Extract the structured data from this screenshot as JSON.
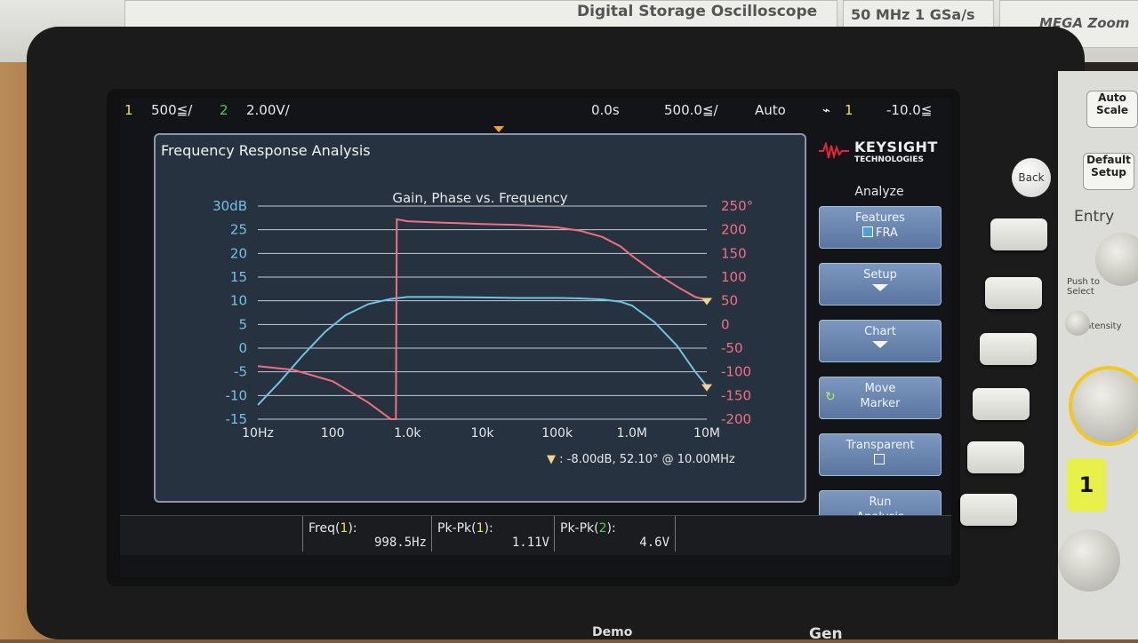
{
  "device": {
    "model_title": "Digital Storage Oscilloscope",
    "spec": "50 MHz  1 GSa/s",
    "brand_badge": "MEGA Zoom"
  },
  "status_bar": {
    "ch1_num": "1",
    "ch1_scale": "500≦/",
    "ch2_num": "2",
    "ch2_scale": "2.00V/",
    "time_offset": "0.0s",
    "time_scale": "500.0≦/",
    "trigger_mode": "Auto",
    "trigger_source": "1",
    "trigger_level": "-10.0≦"
  },
  "fra_window": {
    "title": "Frequency Response Analysis",
    "plot_title": "Gain, Phase vs. Frequency",
    "marker_readout": ": -8.00dB, 52.10° @ 10.00MHz"
  },
  "chart_data": {
    "type": "line",
    "title": "Gain, Phase vs. Frequency",
    "x_scale": "log",
    "x_unit": "Hz",
    "x_tick_labels": [
      "10Hz",
      "100",
      "1.0k",
      "10k",
      "100k",
      "1.0M",
      "10M"
    ],
    "x_ticks": [
      10,
      100,
      1000,
      10000,
      100000,
      1000000,
      10000000
    ],
    "xlim": [
      10,
      10000000
    ],
    "ylim_left": [
      -15,
      30
    ],
    "y_left_tick_labels": [
      "30dB",
      "25",
      "20",
      "15",
      "10",
      "5",
      "0",
      "-5",
      "-10",
      "-15"
    ],
    "ylim_right": [
      -200,
      250
    ],
    "y_right_tick_labels": [
      "250°",
      "200",
      "150",
      "100",
      "50",
      "0",
      "-50",
      "-100",
      "-150",
      "-200"
    ],
    "grid": true,
    "series": [
      {
        "axis": "left",
        "color": "#6fc3e3",
        "x": [
          10,
          20,
          40,
          80,
          150,
          300,
          600,
          1000,
          3000,
          10000,
          30000,
          100000,
          200000,
          400000,
          700000,
          1000000,
          2000000,
          4000000,
          7000000,
          10000000
        ],
        "y": [
          -12,
          -7,
          -1.5,
          3.5,
          7,
          9.3,
          10.4,
          10.8,
          10.8,
          10.7,
          10.6,
          10.6,
          10.5,
          10.3,
          9.8,
          9.0,
          5.5,
          0.5,
          -5,
          -8
        ]
      },
      {
        "axis": "right",
        "color": "#f07080",
        "x": [
          10,
          30,
          100,
          300,
          600,
          700,
          720,
          1000,
          3000,
          10000,
          30000,
          100000,
          200000,
          400000,
          700000,
          1000000,
          2000000,
          4000000,
          7000000,
          10000000
        ],
        "y": [
          -88,
          -96,
          -120,
          -165,
          -200,
          -200,
          222,
          218,
          215,
          212,
          210,
          205,
          198,
          185,
          165,
          145,
          110,
          80,
          58,
          52
        ]
      }
    ],
    "markers": [
      {
        "axis": "left",
        "x": 10000000,
        "y": -8
      },
      {
        "axis": "right",
        "x": 10000000,
        "y": 52.1
      }
    ]
  },
  "softkey_panel": {
    "brand_name": "KEYSIGHT",
    "brand_sub": "TECHNOLOGIES",
    "menu_title": "Analyze",
    "features_label": "Features",
    "features_value": "FRA",
    "setup_label": "Setup",
    "chart_label": "Chart",
    "move_marker_l1": "Move",
    "move_marker_l2": "Marker",
    "transparent_label": "Transparent",
    "run_l1": "Run",
    "run_l2": "Analysis"
  },
  "measurements": {
    "freq_label": "Freq(",
    "freq_ch": "1",
    "freq_label_end": "):",
    "freq_value": "998.5Hz",
    "pk1_label": "Pk-Pk(",
    "pk1_ch": "1",
    "pk1_label_end": "):",
    "pk1_value": "1.11V",
    "pk2_label": "Pk-Pk(",
    "pk2_ch": "2",
    "pk2_label_end": "):",
    "pk2_value": "4.6V"
  },
  "front_panel": {
    "back_label": "Back",
    "auto_scale": "Auto Scale",
    "default_setup": "Default Setup",
    "entry_label": "Entry",
    "push_to_select": "Push to Select",
    "intensity": "Intensity",
    "ch1_button": "1",
    "demo_label": "Demo",
    "gen_label": "Gen"
  }
}
